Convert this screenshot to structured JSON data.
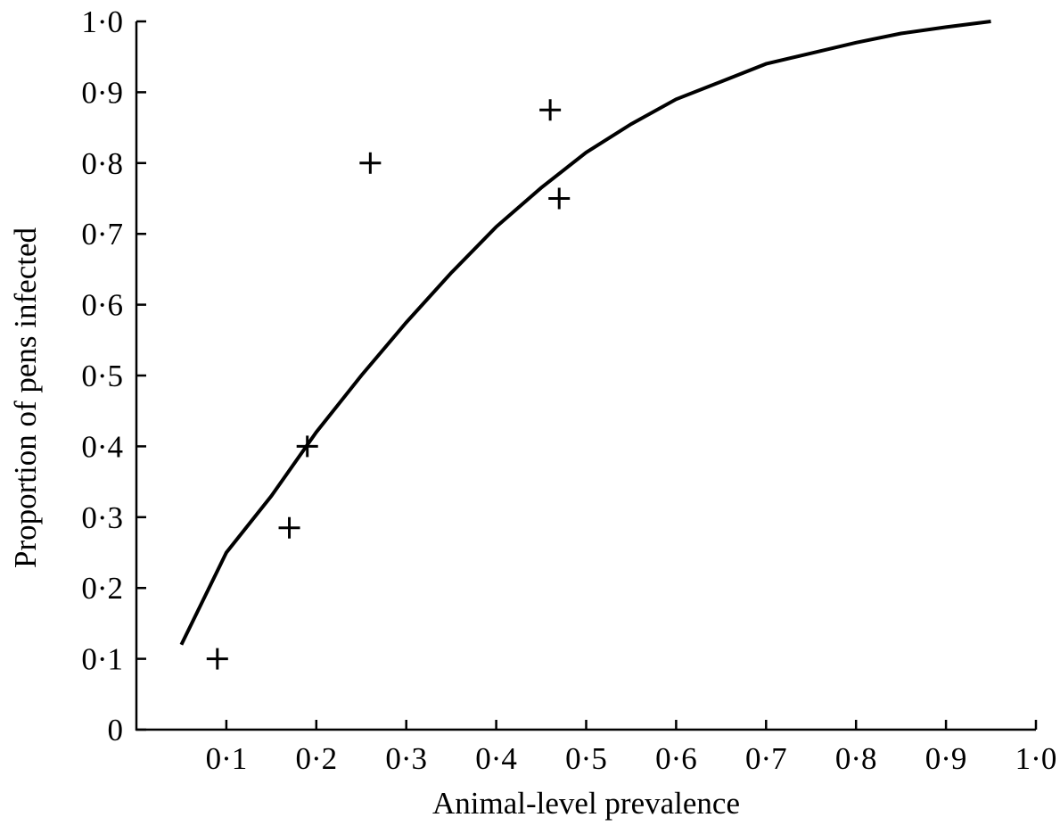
{
  "chart_data": {
    "type": "scatter",
    "title": "",
    "xlabel": "Animal-level prevalence",
    "ylabel": "Proportion of pens infected",
    "xlim": [
      0,
      1.0
    ],
    "ylim": [
      0,
      1.0
    ],
    "grid": false,
    "x_ticks": [
      {
        "value": 0.1,
        "label": "0·1"
      },
      {
        "value": 0.2,
        "label": "0·2"
      },
      {
        "value": 0.3,
        "label": "0·3"
      },
      {
        "value": 0.4,
        "label": "0·4"
      },
      {
        "value": 0.5,
        "label": "0·5"
      },
      {
        "value": 0.6,
        "label": "0·6"
      },
      {
        "value": 0.7,
        "label": "0·7"
      },
      {
        "value": 0.8,
        "label": "0·8"
      },
      {
        "value": 0.9,
        "label": "0·9"
      },
      {
        "value": 1.0,
        "label": "1·0"
      }
    ],
    "y_ticks": [
      {
        "value": 0.0,
        "label": "0"
      },
      {
        "value": 0.1,
        "label": "0·1"
      },
      {
        "value": 0.2,
        "label": "0·2"
      },
      {
        "value": 0.3,
        "label": "0·3"
      },
      {
        "value": 0.4,
        "label": "0·4"
      },
      {
        "value": 0.5,
        "label": "0·5"
      },
      {
        "value": 0.6,
        "label": "0·6"
      },
      {
        "value": 0.7,
        "label": "0·7"
      },
      {
        "value": 0.8,
        "label": "0·8"
      },
      {
        "value": 0.9,
        "label": "0·9"
      },
      {
        "value": 1.0,
        "label": "1·0"
      }
    ],
    "series": [
      {
        "type": "scatter",
        "marker": "plus",
        "points": [
          {
            "x": 0.09,
            "y": 0.1
          },
          {
            "x": 0.17,
            "y": 0.285
          },
          {
            "x": 0.19,
            "y": 0.4
          },
          {
            "x": 0.26,
            "y": 0.8
          },
          {
            "x": 0.46,
            "y": 0.875
          },
          {
            "x": 0.47,
            "y": 0.75
          }
        ]
      },
      {
        "type": "line",
        "points": [
          {
            "x": 0.05,
            "y": 0.12
          },
          {
            "x": 0.1,
            "y": 0.25
          },
          {
            "x": 0.15,
            "y": 0.33
          },
          {
            "x": 0.2,
            "y": 0.42
          },
          {
            "x": 0.25,
            "y": 0.5
          },
          {
            "x": 0.3,
            "y": 0.575
          },
          {
            "x": 0.35,
            "y": 0.645
          },
          {
            "x": 0.4,
            "y": 0.71
          },
          {
            "x": 0.45,
            "y": 0.765
          },
          {
            "x": 0.5,
            "y": 0.815
          },
          {
            "x": 0.55,
            "y": 0.855
          },
          {
            "x": 0.6,
            "y": 0.89
          },
          {
            "x": 0.65,
            "y": 0.915
          },
          {
            "x": 0.7,
            "y": 0.94
          },
          {
            "x": 0.75,
            "y": 0.955
          },
          {
            "x": 0.8,
            "y": 0.97
          },
          {
            "x": 0.85,
            "y": 0.983
          },
          {
            "x": 0.9,
            "y": 0.992
          },
          {
            "x": 0.95,
            "y": 1.0
          }
        ]
      }
    ]
  }
}
